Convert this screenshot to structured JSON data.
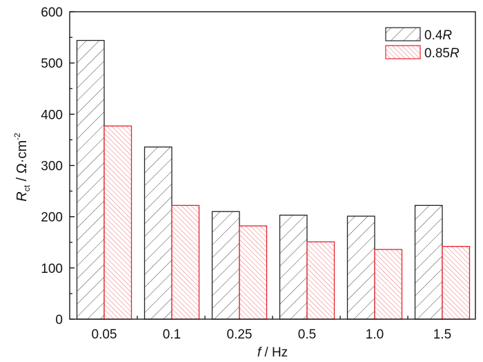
{
  "chart_data": {
    "type": "bar",
    "title": "",
    "xlabel": "f / Hz",
    "xlabel_italic": "f",
    "xlabel_rest": " / Hz",
    "ylabel": "R_ct / Ω·cm^-2",
    "ylabel_main": "R",
    "ylabel_sub": "ct",
    "ylabel_mid": " / Ω·cm",
    "ylabel_sup": "-2",
    "categories": [
      "0.05",
      "0.1",
      "0.25",
      "0.5",
      "1.0",
      "1.5"
    ],
    "ylim": [
      0,
      600
    ],
    "yticks": [
      0,
      100,
      200,
      300,
      400,
      500,
      600
    ],
    "grid": false,
    "legend_position": "upper right",
    "series": [
      {
        "name": "0.4R",
        "label_num": "0.4",
        "label_it": "R",
        "color": "#000000",
        "hatch": "backslash",
        "values": [
          544,
          336,
          210,
          203,
          201,
          222
        ]
      },
      {
        "name": "0.85R",
        "label_num": "0.85",
        "label_it": "R",
        "color": "#e8202a",
        "hatch": "slash",
        "values": [
          377,
          222,
          182,
          151,
          136,
          142
        ]
      }
    ]
  }
}
